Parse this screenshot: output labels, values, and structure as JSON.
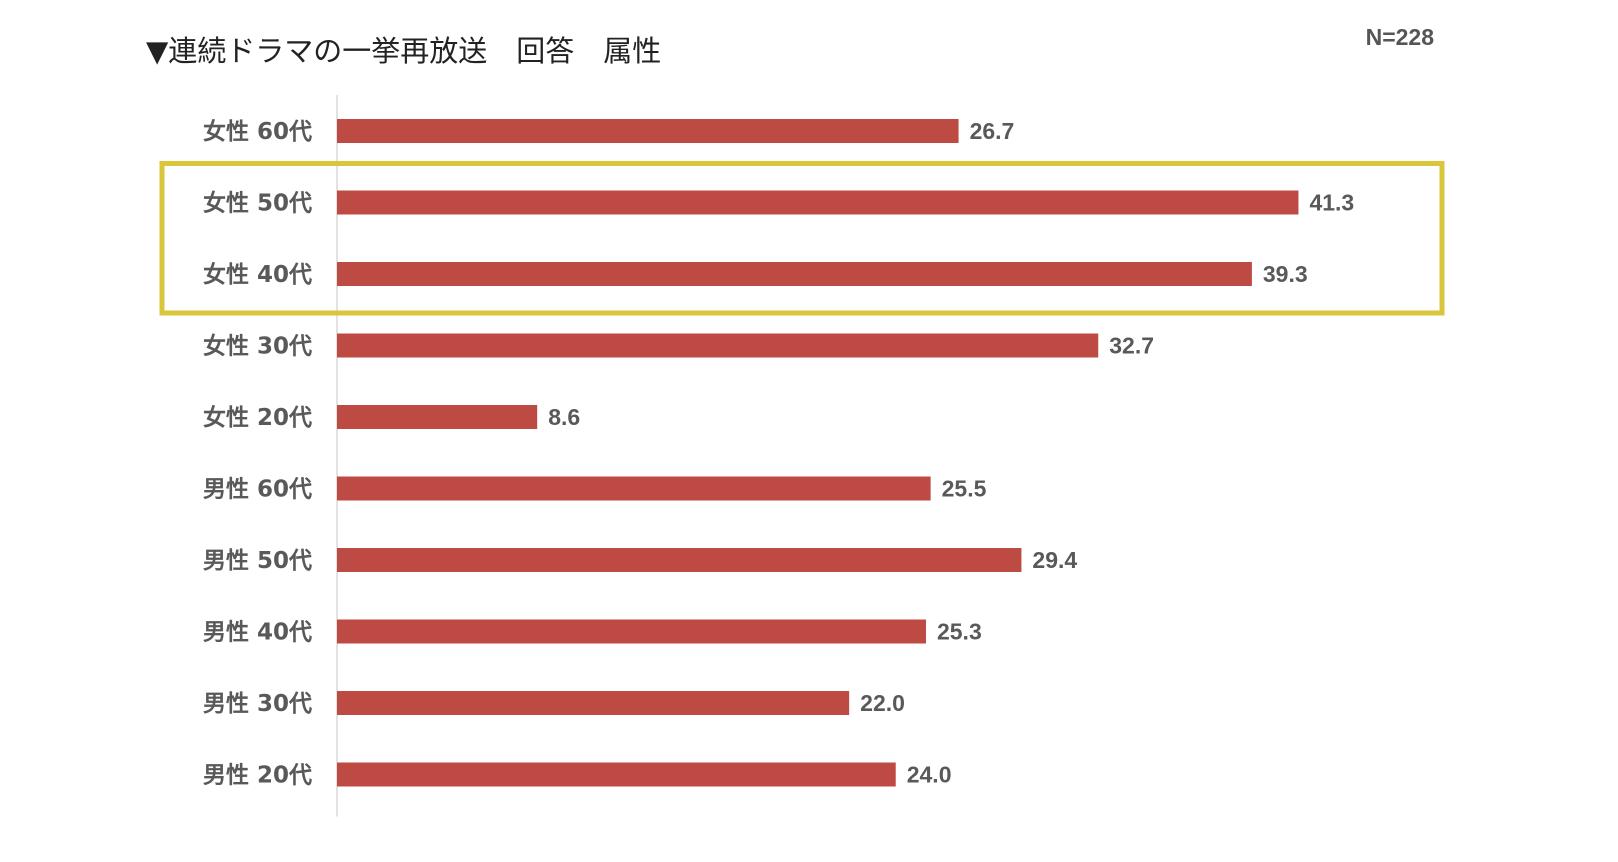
{
  "title": "▼連続ドラマの一挙再放送　回答　属性",
  "n_label": "N=228",
  "colors": {
    "bar": "#be4b43",
    "highlight": "#d9c63a",
    "axis": "#d9d9d9",
    "text": "#595959"
  },
  "chart_data": {
    "type": "bar",
    "orientation": "horizontal",
    "categories": [
      "女性 60代",
      "女性 50代",
      "女性 40代",
      "女性 30代",
      "女性 20代",
      "男性 60代",
      "男性 50代",
      "男性 40代",
      "男性 30代",
      "男性 20代"
    ],
    "values": [
      26.7,
      41.3,
      39.3,
      32.7,
      8.6,
      25.5,
      29.4,
      25.3,
      22.0,
      24.0
    ],
    "value_labels": [
      "26.7",
      "41.3",
      "39.3",
      "32.7",
      "8.6",
      "25.5",
      "29.4",
      "25.3",
      "22.0",
      "24.0"
    ],
    "highlighted_categories": [
      "女性 50代",
      "女性 40代"
    ],
    "grid": false
  }
}
